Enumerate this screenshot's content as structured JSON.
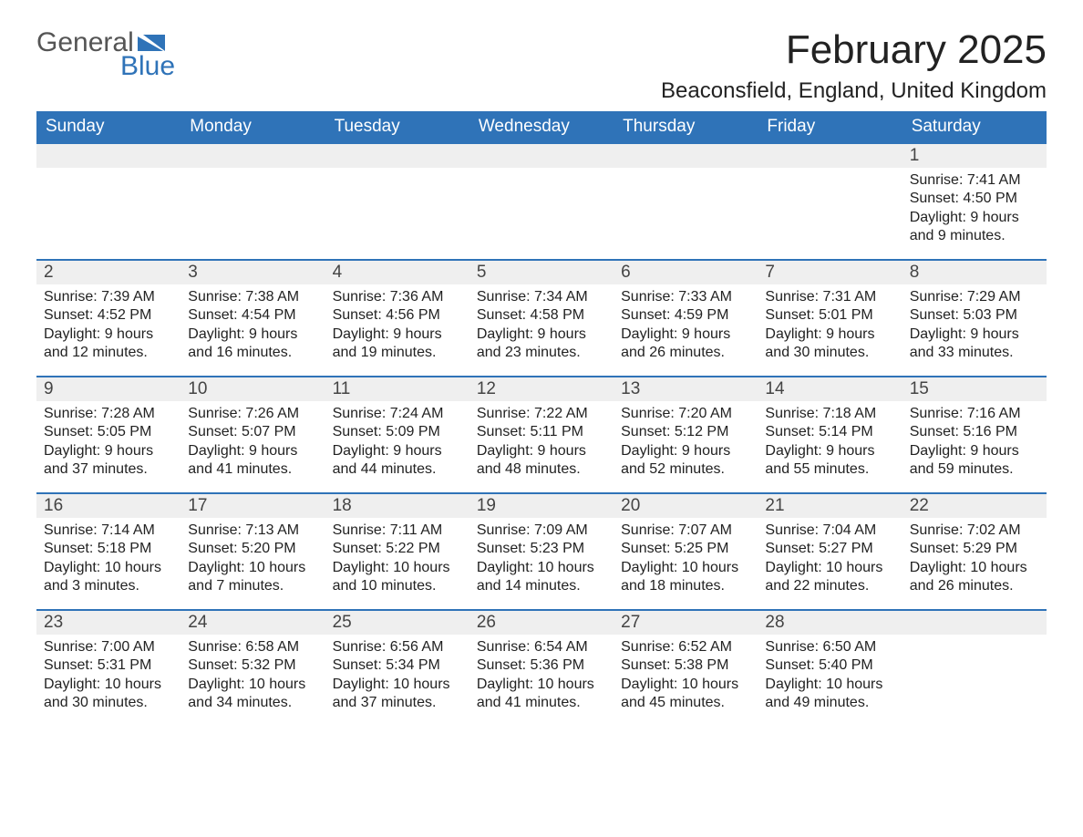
{
  "logo": {
    "word1": "General",
    "word2": "Blue"
  },
  "title": "February 2025",
  "location": "Beaconsfield, England, United Kingdom",
  "colors": {
    "header_bg": "#2f73b8",
    "header_text": "#ffffff",
    "daynum_bg": "#efefef",
    "row_border": "#2f73b8",
    "accent": "#2f73b8",
    "text": "#222222",
    "logo_gray": "#555555"
  },
  "weekdays": [
    "Sunday",
    "Monday",
    "Tuesday",
    "Wednesday",
    "Thursday",
    "Friday",
    "Saturday"
  ],
  "weeks": [
    [
      {
        "empty": true
      },
      {
        "empty": true
      },
      {
        "empty": true
      },
      {
        "empty": true
      },
      {
        "empty": true
      },
      {
        "empty": true
      },
      {
        "day": "1",
        "sunrise": "Sunrise: 7:41 AM",
        "sunset": "Sunset: 4:50 PM",
        "daylight": "Daylight: 9 hours and 9 minutes."
      }
    ],
    [
      {
        "day": "2",
        "sunrise": "Sunrise: 7:39 AM",
        "sunset": "Sunset: 4:52 PM",
        "daylight": "Daylight: 9 hours and 12 minutes."
      },
      {
        "day": "3",
        "sunrise": "Sunrise: 7:38 AM",
        "sunset": "Sunset: 4:54 PM",
        "daylight": "Daylight: 9 hours and 16 minutes."
      },
      {
        "day": "4",
        "sunrise": "Sunrise: 7:36 AM",
        "sunset": "Sunset: 4:56 PM",
        "daylight": "Daylight: 9 hours and 19 minutes."
      },
      {
        "day": "5",
        "sunrise": "Sunrise: 7:34 AM",
        "sunset": "Sunset: 4:58 PM",
        "daylight": "Daylight: 9 hours and 23 minutes."
      },
      {
        "day": "6",
        "sunrise": "Sunrise: 7:33 AM",
        "sunset": "Sunset: 4:59 PM",
        "daylight": "Daylight: 9 hours and 26 minutes."
      },
      {
        "day": "7",
        "sunrise": "Sunrise: 7:31 AM",
        "sunset": "Sunset: 5:01 PM",
        "daylight": "Daylight: 9 hours and 30 minutes."
      },
      {
        "day": "8",
        "sunrise": "Sunrise: 7:29 AM",
        "sunset": "Sunset: 5:03 PM",
        "daylight": "Daylight: 9 hours and 33 minutes."
      }
    ],
    [
      {
        "day": "9",
        "sunrise": "Sunrise: 7:28 AM",
        "sunset": "Sunset: 5:05 PM",
        "daylight": "Daylight: 9 hours and 37 minutes."
      },
      {
        "day": "10",
        "sunrise": "Sunrise: 7:26 AM",
        "sunset": "Sunset: 5:07 PM",
        "daylight": "Daylight: 9 hours and 41 minutes."
      },
      {
        "day": "11",
        "sunrise": "Sunrise: 7:24 AM",
        "sunset": "Sunset: 5:09 PM",
        "daylight": "Daylight: 9 hours and 44 minutes."
      },
      {
        "day": "12",
        "sunrise": "Sunrise: 7:22 AM",
        "sunset": "Sunset: 5:11 PM",
        "daylight": "Daylight: 9 hours and 48 minutes."
      },
      {
        "day": "13",
        "sunrise": "Sunrise: 7:20 AM",
        "sunset": "Sunset: 5:12 PM",
        "daylight": "Daylight: 9 hours and 52 minutes."
      },
      {
        "day": "14",
        "sunrise": "Sunrise: 7:18 AM",
        "sunset": "Sunset: 5:14 PM",
        "daylight": "Daylight: 9 hours and 55 minutes."
      },
      {
        "day": "15",
        "sunrise": "Sunrise: 7:16 AM",
        "sunset": "Sunset: 5:16 PM",
        "daylight": "Daylight: 9 hours and 59 minutes."
      }
    ],
    [
      {
        "day": "16",
        "sunrise": "Sunrise: 7:14 AM",
        "sunset": "Sunset: 5:18 PM",
        "daylight": "Daylight: 10 hours and 3 minutes."
      },
      {
        "day": "17",
        "sunrise": "Sunrise: 7:13 AM",
        "sunset": "Sunset: 5:20 PM",
        "daylight": "Daylight: 10 hours and 7 minutes."
      },
      {
        "day": "18",
        "sunrise": "Sunrise: 7:11 AM",
        "sunset": "Sunset: 5:22 PM",
        "daylight": "Daylight: 10 hours and 10 minutes."
      },
      {
        "day": "19",
        "sunrise": "Sunrise: 7:09 AM",
        "sunset": "Sunset: 5:23 PM",
        "daylight": "Daylight: 10 hours and 14 minutes."
      },
      {
        "day": "20",
        "sunrise": "Sunrise: 7:07 AM",
        "sunset": "Sunset: 5:25 PM",
        "daylight": "Daylight: 10 hours and 18 minutes."
      },
      {
        "day": "21",
        "sunrise": "Sunrise: 7:04 AM",
        "sunset": "Sunset: 5:27 PM",
        "daylight": "Daylight: 10 hours and 22 minutes."
      },
      {
        "day": "22",
        "sunrise": "Sunrise: 7:02 AM",
        "sunset": "Sunset: 5:29 PM",
        "daylight": "Daylight: 10 hours and 26 minutes."
      }
    ],
    [
      {
        "day": "23",
        "sunrise": "Sunrise: 7:00 AM",
        "sunset": "Sunset: 5:31 PM",
        "daylight": "Daylight: 10 hours and 30 minutes."
      },
      {
        "day": "24",
        "sunrise": "Sunrise: 6:58 AM",
        "sunset": "Sunset: 5:32 PM",
        "daylight": "Daylight: 10 hours and 34 minutes."
      },
      {
        "day": "25",
        "sunrise": "Sunrise: 6:56 AM",
        "sunset": "Sunset: 5:34 PM",
        "daylight": "Daylight: 10 hours and 37 minutes."
      },
      {
        "day": "26",
        "sunrise": "Sunrise: 6:54 AM",
        "sunset": "Sunset: 5:36 PM",
        "daylight": "Daylight: 10 hours and 41 minutes."
      },
      {
        "day": "27",
        "sunrise": "Sunrise: 6:52 AM",
        "sunset": "Sunset: 5:38 PM",
        "daylight": "Daylight: 10 hours and 45 minutes."
      },
      {
        "day": "28",
        "sunrise": "Sunrise: 6:50 AM",
        "sunset": "Sunset: 5:40 PM",
        "daylight": "Daylight: 10 hours and 49 minutes."
      },
      {
        "empty": true
      }
    ]
  ]
}
